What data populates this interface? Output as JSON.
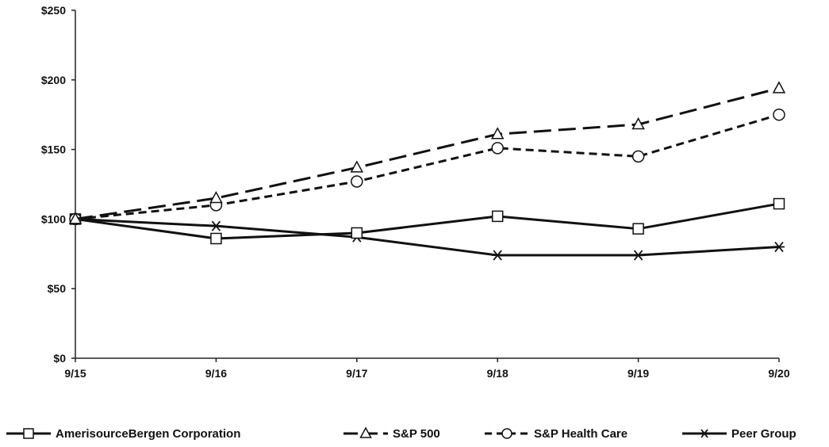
{
  "chart_data": {
    "type": "line",
    "title": "",
    "xlabel": "",
    "ylabel": "",
    "categories": [
      "9/15",
      "9/16",
      "9/17",
      "9/18",
      "9/19",
      "9/20"
    ],
    "y_ticks": [
      "$0",
      "$50",
      "$100",
      "$150",
      "$200",
      "$250"
    ],
    "ylim": [
      0,
      250
    ],
    "grid": false,
    "legend_position": "bottom",
    "series": [
      {
        "name": "AmerisourceBergen Corporation",
        "marker": "square",
        "dash": "solid",
        "color": "#111111",
        "values": [
          100,
          86,
          90,
          102,
          93,
          111
        ]
      },
      {
        "name": "S&P 500",
        "marker": "triangle",
        "dash": "long-dash",
        "color": "#111111",
        "values": [
          100,
          115,
          137,
          161,
          168,
          194
        ]
      },
      {
        "name": "S&P Health Care",
        "marker": "circle",
        "dash": "short-dash",
        "color": "#111111",
        "values": [
          100,
          110,
          127,
          151,
          145,
          175
        ]
      },
      {
        "name": "Peer Group",
        "marker": "asterisk",
        "dash": "solid",
        "color": "#111111",
        "values": [
          100,
          95,
          87,
          74,
          74,
          80
        ]
      }
    ]
  }
}
